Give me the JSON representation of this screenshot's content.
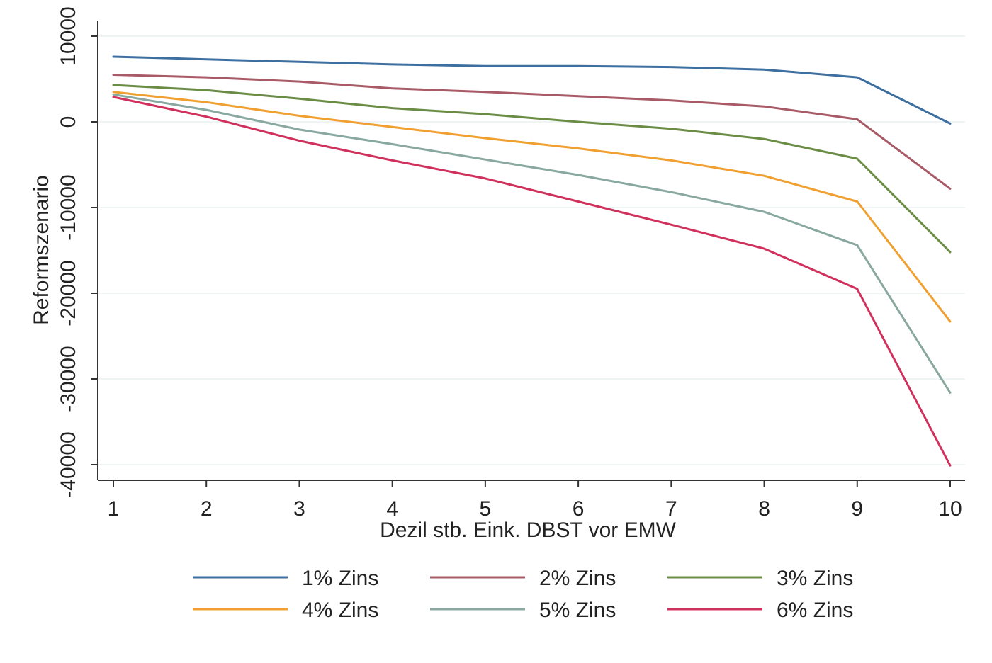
{
  "chart_data": {
    "type": "line",
    "title": "",
    "xlabel": "Dezil stb. Eink. DBST vor EMW",
    "ylabel": "Reformszenario",
    "x": [
      1,
      2,
      3,
      4,
      5,
      6,
      7,
      8,
      9,
      10
    ],
    "xlim": [
      1,
      10
    ],
    "ylim": [
      -40000,
      10000
    ],
    "xticks": [
      "1",
      "2",
      "3",
      "4",
      "5",
      "6",
      "7",
      "8",
      "9",
      "10"
    ],
    "yticks": [
      {
        "value": 10000,
        "label": "10000"
      },
      {
        "value": 0,
        "label": "0"
      },
      {
        "value": -10000,
        "label": "-10000"
      },
      {
        "value": -20000,
        "label": "-20000"
      },
      {
        "value": -30000,
        "label": "-30000"
      },
      {
        "value": -40000,
        "label": "-40000"
      }
    ],
    "grid": true,
    "legend_position": "bottom",
    "series": [
      {
        "name": "1% Zins",
        "color": "#3d6fa0",
        "values": [
          7600,
          7300,
          7000,
          6700,
          6500,
          6500,
          6400,
          6100,
          5200,
          -200
        ]
      },
      {
        "name": "2% Zins",
        "color": "#a85a66",
        "values": [
          5500,
          5200,
          4700,
          3900,
          3500,
          3000,
          2500,
          1800,
          300,
          -7800
        ]
      },
      {
        "name": "3% Zins",
        "color": "#6b8c45",
        "values": [
          4300,
          3700,
          2700,
          1600,
          900,
          0,
          -800,
          -2000,
          -4300,
          -15200
        ]
      },
      {
        "name": "4% Zins",
        "color": "#f0a030",
        "values": [
          3500,
          2300,
          700,
          -600,
          -1900,
          -3100,
          -4500,
          -6300,
          -9300,
          -23300
        ]
      },
      {
        "name": "5% Zins",
        "color": "#88a8a0",
        "values": [
          3200,
          1400,
          -900,
          -2600,
          -4400,
          -6200,
          -8200,
          -10500,
          -14400,
          -31600
        ]
      },
      {
        "name": "6% Zins",
        "color": "#d0305c",
        "values": [
          2900,
          600,
          -2200,
          -4500,
          -6600,
          -9300,
          -12000,
          -14800,
          -19500,
          -40100
        ]
      }
    ]
  }
}
